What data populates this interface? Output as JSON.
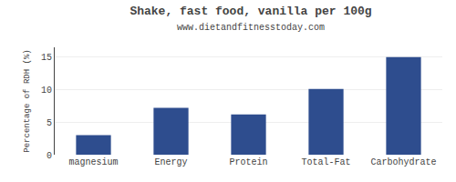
{
  "chart_data": {
    "type": "bar",
    "title": "Shake, fast food, vanilla per 100g",
    "subtitle": "www.dietandfitnesstoday.com",
    "categories": [
      "magnesium",
      "Energy",
      "Protein",
      "Total-Fat",
      "Carbohydrate"
    ],
    "values": [
      3.0,
      7.2,
      6.2,
      10.1,
      15.0
    ],
    "color": "#2e4d8e",
    "ylabel": "Percentage of RDH (%)",
    "ylim": [
      0,
      16.5
    ],
    "yticks": [
      0,
      5,
      10,
      15
    ],
    "grid": true
  }
}
